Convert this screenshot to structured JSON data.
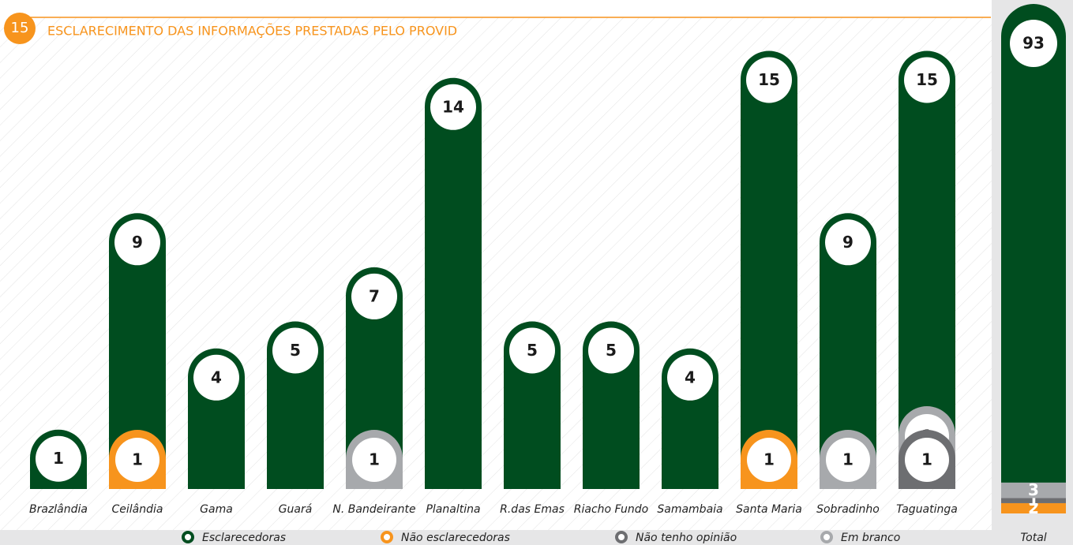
{
  "header": {
    "number": "15",
    "title": "ESCLARECIMENTO DAS INFORMAÇÕES PRESTADAS PELO PROVID"
  },
  "chart_data": {
    "type": "bar",
    "categories": [
      "Brazlândia",
      "Ceilândia",
      "Gama",
      "Guará",
      "N. Bandeirante",
      "Planaltina",
      "R.das Emas",
      "Riacho Fundo",
      "Samambaia",
      "Santa Maria",
      "Sobradinho",
      "Taguatinga"
    ],
    "series": [
      {
        "name": "Esclarecedoras",
        "color": "#004d1f",
        "values": [
          1,
          9,
          4,
          5,
          7,
          14,
          5,
          5,
          4,
          15,
          9,
          15
        ]
      },
      {
        "name": "Não esclarecedoras",
        "color": "#f7941d",
        "values": [
          null,
          1,
          null,
          null,
          null,
          null,
          null,
          null,
          null,
          1,
          null,
          null
        ]
      },
      {
        "name": "Não tenho opinião",
        "color": "#6d6e71",
        "values": [
          null,
          null,
          null,
          null,
          null,
          null,
          null,
          null,
          null,
          null,
          null,
          1
        ]
      },
      {
        "name": "Em branco",
        "color": "#a7a9ac",
        "values": [
          null,
          null,
          null,
          null,
          1,
          null,
          null,
          null,
          null,
          null,
          1,
          1
        ]
      }
    ],
    "total_label": "Total",
    "totals": [
      93,
      2,
      1,
      3
    ]
  }
}
